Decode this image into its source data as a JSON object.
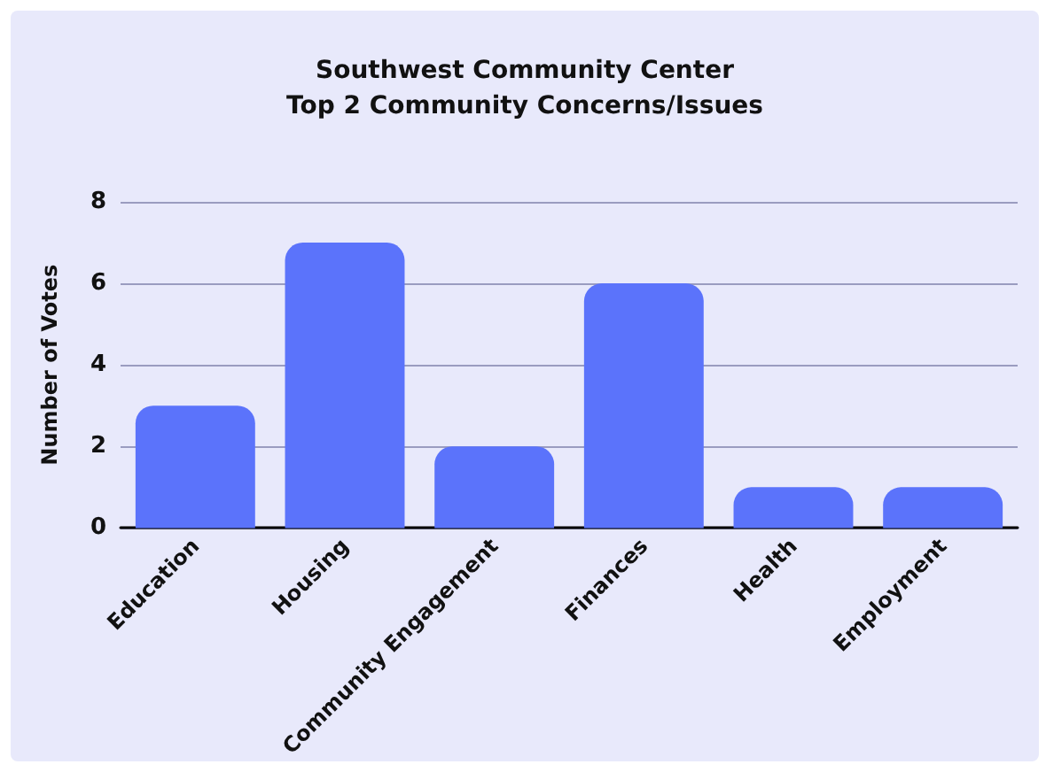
{
  "chart_data": {
    "type": "bar",
    "title": "Southwest Community Center",
    "subtitle": "Top 2 Community Concerns/Issues",
    "ylabel": "Number of Votes",
    "categories": [
      "Education",
      "Housing",
      "Community Engagement",
      "Finances",
      "Health",
      "Employment"
    ],
    "values": [
      3,
      7,
      2,
      6,
      1,
      1
    ],
    "color": "#5b73fb",
    "ylim": [
      0,
      8
    ],
    "yticks": [
      0,
      2,
      4,
      6,
      8
    ],
    "grid": "y"
  }
}
